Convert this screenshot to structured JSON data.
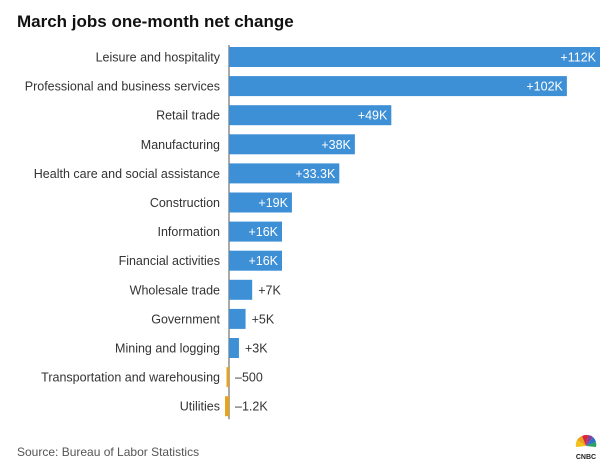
{
  "title": "March jobs one-month net change",
  "source": "Source: Bureau of Labor Statistics",
  "logo_text": "CNBC",
  "colors": {
    "positive": "#3d8fd6",
    "negative": "#e8a31b",
    "axis": "#555555"
  },
  "chart_data": {
    "type": "bar",
    "orientation": "horizontal",
    "title": "March jobs one-month net change",
    "categories": [
      "Leisure and hospitality",
      "Professional and business services",
      "Retail trade",
      "Manufacturing",
      "Health care and social assistance",
      "Construction",
      "Information",
      "Financial activities",
      "Wholesale trade",
      "Government",
      "Mining and logging",
      "Transportation and warehousing",
      "Utilities"
    ],
    "values": [
      112000,
      102000,
      49000,
      38000,
      33300,
      19000,
      16000,
      16000,
      7000,
      5000,
      3000,
      -500,
      -1200
    ],
    "labels": [
      "+112K",
      "+102K",
      "+49K",
      "+38K",
      "+33.3K",
      "+19K",
      "+16K",
      "+16K",
      "+7K",
      "+5K",
      "+3K",
      "–500",
      "–1.2K"
    ],
    "xlim": [
      0,
      112000
    ],
    "grid": false,
    "legend": "none"
  }
}
